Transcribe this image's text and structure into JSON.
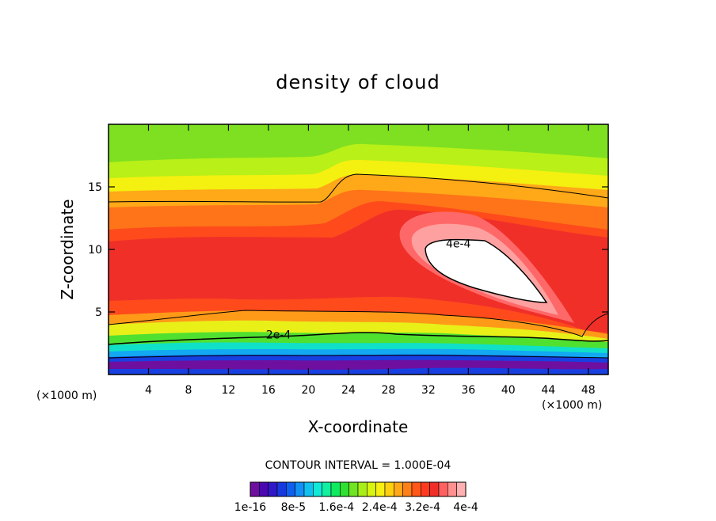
{
  "chart_data": {
    "type": "heatmap",
    "title": "density of cloud",
    "xlabel": "X-coordinate",
    "ylabel": "Z-coordinate",
    "x_unit_left": "(×1000 m)",
    "x_unit_right": "(×1000 m)",
    "xlim": [
      0,
      50
    ],
    "ylim": [
      0,
      20
    ],
    "x_ticks": [
      4,
      8,
      12,
      16,
      20,
      24,
      28,
      32,
      36,
      40,
      44,
      48
    ],
    "x_tick_labels": [
      "4",
      "8",
      "12",
      "16",
      "20",
      "24",
      "28",
      "32",
      "36",
      "40",
      "44",
      "48"
    ],
    "y_ticks": [
      5,
      10,
      15
    ],
    "y_tick_labels": [
      "5",
      "10",
      "15"
    ],
    "contour_interval_text": "CONTOUR INTERVAL = 1.000E-04",
    "contour_labels": [
      {
        "text": "4e-4",
        "x": 35,
        "z": 10.3
      },
      {
        "text": "2e-4",
        "x": 17,
        "z": 3.0
      }
    ],
    "colorbar": {
      "colors": [
        "#6e0fa0",
        "#4b08b0",
        "#3018c8",
        "#1838e0",
        "#1060f0",
        "#1290f5",
        "#10c0f0",
        "#10e8d8",
        "#10f0a0",
        "#10ea60",
        "#30e030",
        "#70e420",
        "#a8ee18",
        "#d8f510",
        "#f8f010",
        "#ffd010",
        "#ffa818",
        "#ff8018",
        "#ff5818",
        "#ff3a20",
        "#f03028",
        "#ff6060",
        "#ff9090",
        "#ffb0b0"
      ],
      "tick_labels": [
        "1e-16",
        "8e-5",
        "1.6e-4",
        "2.4e-4",
        "3.2e-4",
        "4e-4"
      ]
    },
    "colors": {
      "green_top": "#80e820",
      "yellow": "#f0f010",
      "orange": "#ff9a18",
      "red": "#f03028",
      "pink": "#ff9090",
      "cyan": "#10d8d8",
      "blue": "#1840e0",
      "purple": "#6e0fa0"
    }
  }
}
